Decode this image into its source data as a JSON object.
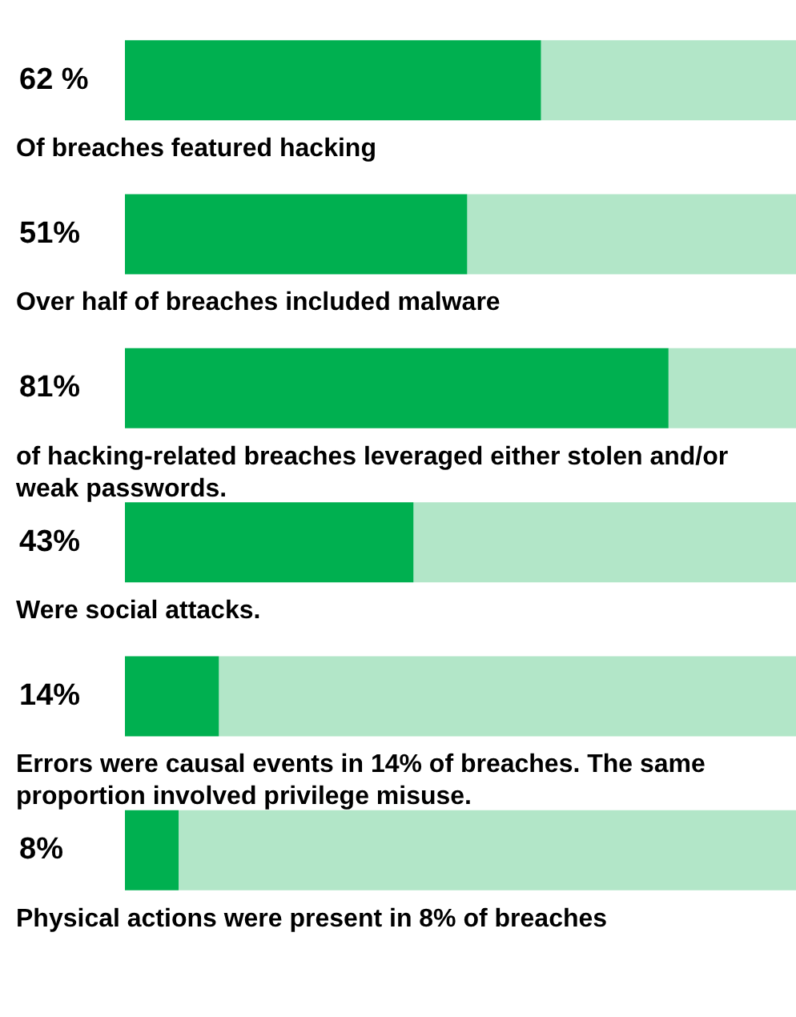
{
  "chart_data": {
    "type": "bar",
    "orientation": "horizontal",
    "stacked": true,
    "categories": [
      "Of breaches featured hacking",
      "Over half of breaches included malware",
      "of hacking-related breaches leveraged either stolen and/or weak passwords.",
      "Were social attacks.",
      "Errors were causal events in 14% of breaches. The same proportion involved privilege misuse.",
      "Physical actions were present in 8% of breaches"
    ],
    "series": [
      {
        "color": "#00b050",
        "values": [
          62,
          51,
          81,
          43,
          14,
          8
        ],
        "value_labels": [
          "62 %",
          "51%",
          "81%",
          "43%",
          "14%",
          "8%"
        ]
      },
      {
        "color": "#b2e6c8",
        "values": [
          38,
          49,
          19,
          57,
          86,
          92
        ]
      }
    ],
    "xlim": [
      0,
      100
    ],
    "tick_labels": false
  }
}
